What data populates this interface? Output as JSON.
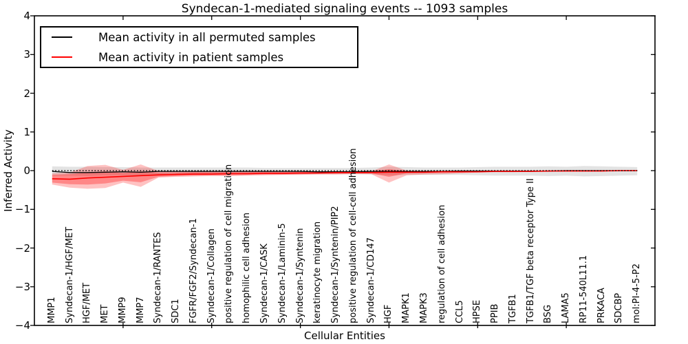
{
  "chart_data": {
    "type": "line",
    "title": "Syndecan-1-mediated signaling events -- 1093 samples",
    "xlabel": "Cellular Entities",
    "ylabel": "Inferred Activity",
    "ylim": [
      -4,
      4
    ],
    "xlim": [
      0,
      35
    ],
    "ytick_step": 1,
    "xtick_step": 5,
    "grid": false,
    "legend_position": "upper left",
    "reference_line_y": 0,
    "yticklabels": [
      "4",
      "3",
      "2",
      "1",
      "0",
      "−1",
      "−2",
      "−3",
      "−4"
    ],
    "categories": [
      "MMP1",
      "Syndecan-1/HGF/MET",
      "HGF/MET",
      "MET",
      "MMP9",
      "MMP7",
      "Syndecan-1/RANTES",
      "SDC1",
      "FGFR/FGF2/Syndecan-1",
      "Syndecan-1/Collagen",
      "positive regulation of cell migration",
      "homophilic cell adhesion",
      "Syndecan-1/CASK",
      "Syndecan-1/Laminin-5",
      "Syndecan-1/Syntenin",
      "keratinocyte migration",
      "Syndecan-1/Syntenin/PIP2",
      "positive regulation of cell-cell adhesion",
      "Syndecan-1/CD147",
      "HGF",
      "MAPK1",
      "MAPK3",
      "regulation of cell adhesion",
      "CCL5",
      "HPSE",
      "PPIB",
      "TGFB1",
      "TGFB1/TGF beta receptor Type II",
      "BSG",
      "LAMA5",
      "RP11-540L11.1",
      "PRKACA",
      "SDCBP",
      "mol:PI-4-5-P2"
    ],
    "series": [
      {
        "name": "Mean activity in all permuted samples",
        "color": "#000000",
        "values": [
          -0.02,
          -0.05,
          -0.05,
          -0.04,
          -0.03,
          -0.04,
          -0.02,
          -0.02,
          -0.02,
          -0.02,
          -0.02,
          -0.02,
          -0.02,
          -0.02,
          -0.02,
          -0.03,
          -0.03,
          -0.03,
          -0.02,
          -0.02,
          -0.02,
          -0.02,
          -0.02,
          -0.01,
          -0.01,
          -0.01,
          -0.01,
          -0.01,
          -0.01,
          0,
          0,
          0,
          0,
          0
        ]
      },
      {
        "name": "Mean activity in patient samples",
        "color": "#ff0000",
        "values": [
          -0.21,
          -0.22,
          -0.19,
          -0.17,
          -0.15,
          -0.13,
          -0.11,
          -0.1,
          -0.09,
          -0.09,
          -0.08,
          -0.08,
          -0.07,
          -0.07,
          -0.06,
          -0.06,
          -0.05,
          -0.05,
          -0.05,
          -0.04,
          -0.04,
          -0.04,
          -0.03,
          -0.03,
          -0.03,
          -0.02,
          -0.02,
          -0.02,
          -0.01,
          -0.01,
          -0.01,
          -0.01,
          0,
          0
        ]
      }
    ],
    "bands": [
      {
        "name": "permuted-samples-range",
        "color": "rgba(0,0,0,0.11)",
        "upper": [
          0.11,
          0.1,
          0.1,
          0.09,
          0.09,
          0.08,
          0.08,
          0.08,
          0.08,
          0.08,
          0.08,
          0.08,
          0.07,
          0.07,
          0.07,
          0.07,
          0.07,
          0.07,
          0.08,
          0.1,
          0.09,
          0.08,
          0.08,
          0.08,
          0.09,
          0.1,
          0.1,
          0.1,
          0.11,
          0.1,
          0.12,
          0.11,
          0.1,
          0.09
        ],
        "lower": [
          -0.13,
          -0.13,
          -0.14,
          -0.12,
          -0.12,
          -0.12,
          -0.1,
          -0.1,
          -0.1,
          -0.1,
          -0.1,
          -0.1,
          -0.09,
          -0.09,
          -0.09,
          -0.09,
          -0.09,
          -0.09,
          -0.1,
          -0.12,
          -0.11,
          -0.11,
          -0.11,
          -0.11,
          -0.12,
          -0.13,
          -0.13,
          -0.13,
          -0.14,
          -0.13,
          -0.15,
          -0.14,
          -0.13,
          -0.12
        ]
      },
      {
        "name": "patient-samples-range-outer",
        "color": "rgba(255,0,0,0.24)",
        "upper": [
          -0.07,
          -0.05,
          0.12,
          0.15,
          0.02,
          0.16,
          -0.01,
          -0.02,
          -0.02,
          -0.02,
          -0.02,
          -0.02,
          -0.02,
          -0.03,
          -0.03,
          -0.03,
          -0.03,
          -0.03,
          -0.02,
          0.16,
          0,
          -0.01,
          -0.01,
          -0.01,
          -0.01,
          -0.01,
          0,
          0,
          0,
          0,
          0,
          0,
          0.01,
          0.01
        ],
        "lower": [
          -0.36,
          -0.44,
          -0.47,
          -0.45,
          -0.31,
          -0.42,
          -0.18,
          -0.16,
          -0.15,
          -0.14,
          -0.14,
          -0.13,
          -0.12,
          -0.11,
          -0.11,
          -0.1,
          -0.1,
          -0.09,
          -0.09,
          -0.31,
          -0.12,
          -0.1,
          -0.09,
          -0.07,
          -0.05,
          -0.04,
          -0.04,
          -0.03,
          -0.03,
          -0.02,
          -0.02,
          -0.02,
          -0.01,
          -0.01
        ]
      },
      {
        "name": "patient-samples-range-inner",
        "color": "rgba(255,0,0,0.30)",
        "upper": [
          -0.11,
          -0.09,
          -0.05,
          -0.02,
          -0.06,
          -0.02,
          -0.05,
          -0.05,
          -0.04,
          -0.04,
          -0.04,
          -0.04,
          -0.04,
          -0.04,
          -0.04,
          -0.04,
          -0.04,
          -0.04,
          -0.03,
          0.04,
          -0.02,
          -0.02,
          -0.02,
          -0.02,
          -0.01,
          -0.01,
          -0.01,
          -0.01,
          0,
          0,
          0,
          0,
          0,
          0
        ],
        "lower": [
          -0.31,
          -0.35,
          -0.36,
          -0.33,
          -0.26,
          -0.3,
          -0.16,
          -0.14,
          -0.13,
          -0.12,
          -0.12,
          -0.11,
          -0.1,
          -0.1,
          -0.09,
          -0.08,
          -0.08,
          -0.07,
          -0.07,
          -0.16,
          -0.07,
          -0.06,
          -0.05,
          -0.05,
          -0.04,
          -0.03,
          -0.03,
          -0.03,
          -0.02,
          -0.02,
          -0.02,
          -0.01,
          -0.01,
          -0.01
        ]
      }
    ]
  }
}
